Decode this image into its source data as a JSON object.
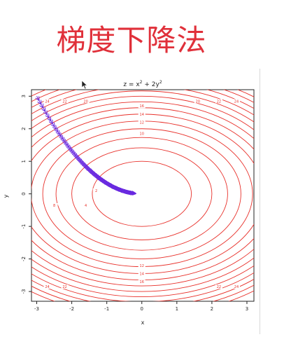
{
  "headline": "梯度下降法",
  "chart_data": {
    "type": "contour",
    "title_main": "z = x",
    "title_sup1": "2",
    "title_mid": " + 2y",
    "title_sup2": "2",
    "xlabel": "x",
    "ylabel": "y",
    "xlim": [
      -3.15,
      3.2
    ],
    "ylim": [
      -3.3,
      3.2
    ],
    "xticks": [
      -3,
      -2,
      -1,
      0,
      1,
      2,
      3
    ],
    "yticks": [
      -3,
      -2,
      -1,
      0,
      1,
      2,
      3
    ],
    "contour_levels": [
      2,
      4,
      6,
      8,
      10,
      12,
      14,
      16,
      18,
      20,
      22,
      24,
      26,
      28
    ],
    "contour_labels": [
      {
        "x": -2.7,
        "y": 2.85,
        "text": "24"
      },
      {
        "x": -2.2,
        "y": 2.85,
        "text": "22"
      },
      {
        "x": -1.6,
        "y": 2.85,
        "text": "20"
      },
      {
        "x": 0,
        "y": 2.7,
        "text": "16"
      },
      {
        "x": 0,
        "y": 2.45,
        "text": "14"
      },
      {
        "x": 0,
        "y": 2.2,
        "text": "12"
      },
      {
        "x": 0,
        "y": 1.85,
        "text": "10"
      },
      {
        "x": 1.6,
        "y": 2.85,
        "text": "20"
      },
      {
        "x": 2.2,
        "y": 2.85,
        "text": "22"
      },
      {
        "x": 2.7,
        "y": 2.85,
        "text": "24"
      },
      {
        "x": -1.3,
        "y": 0.1,
        "text": "2"
      },
      {
        "x": -2.5,
        "y": -0.35,
        "text": "8"
      },
      {
        "x": -1.6,
        "y": -0.35,
        "text": "4"
      },
      {
        "x": -2.7,
        "y": -2.85,
        "text": "24"
      },
      {
        "x": -2.2,
        "y": -2.85,
        "text": "22"
      },
      {
        "x": 0,
        "y": -2.2,
        "text": "12"
      },
      {
        "x": 0,
        "y": -2.45,
        "text": "14"
      },
      {
        "x": 0,
        "y": -2.7,
        "text": "16"
      },
      {
        "x": 2.2,
        "y": -2.85,
        "text": "22"
      },
      {
        "x": 2.7,
        "y": -2.85,
        "text": "24"
      }
    ],
    "contour_color": "#e8302a",
    "path_color": "#6a2be0",
    "path_start": [
      -3.0,
      3.0
    ],
    "path_x_factor": 0.98,
    "path_y_factor": 0.96,
    "path_steps": 140
  }
}
